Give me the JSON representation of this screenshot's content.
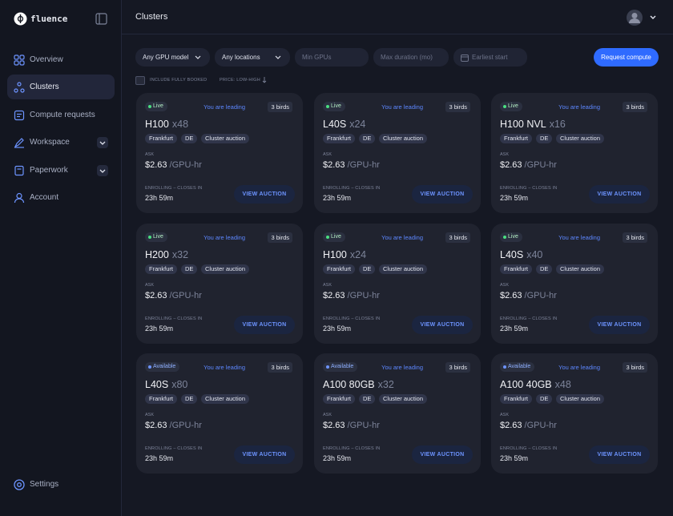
{
  "brand": "fluence",
  "nav": [
    {
      "label": "Overview"
    },
    {
      "label": "Clusters"
    },
    {
      "label": "Compute requests"
    },
    {
      "label": "Workspace"
    },
    {
      "label": "Paperwork"
    },
    {
      "label": "Account"
    }
  ],
  "settings": "Settings",
  "header": {
    "title": "Clusters"
  },
  "filters": {
    "gpu_model": "Any GPU model",
    "locations": "Any locations",
    "min_gpus": "Min GPUs",
    "max_duration": "Max duration (mo)",
    "earliest_start": "Earliest start",
    "request": "Request compute",
    "include_booked": "INCLUDE FULLY BOOKED",
    "sort": "PRICE: LOW-HIGH"
  },
  "cards": [
    {
      "status": "Live",
      "leading": "You are leading",
      "birds": "3 birds",
      "model": "H100",
      "count": "x48",
      "city": "Frankfurt",
      "country": "DE",
      "kind": "Cluster auction",
      "ask_label": "ASK",
      "price": "$2.63",
      "unit": "/GPU-hr",
      "closes_label": "ENROLLING – CLOSES IN",
      "time": "23h 59m",
      "button": "VIEW AUCTION"
    },
    {
      "status": "Live",
      "leading": "You are leading",
      "birds": "3 birds",
      "model": "L40S",
      "count": "x24",
      "city": "Frankfurt",
      "country": "DE",
      "kind": "Cluster auction",
      "ask_label": "ASK",
      "price": "$2.63",
      "unit": "/GPU-hr",
      "closes_label": "ENROLLING – CLOSES IN",
      "time": "23h 59m",
      "button": "VIEW AUCTION"
    },
    {
      "status": "Live",
      "leading": "You are leading",
      "birds": "3 birds",
      "model": "H100 NVL",
      "count": "x16",
      "city": "Frankfurt",
      "country": "DE",
      "kind": "Cluster auction",
      "ask_label": "ASK",
      "price": "$2.63",
      "unit": "/GPU-hr",
      "closes_label": "ENROLLING – CLOSES IN",
      "time": "23h 59m",
      "button": "VIEW AUCTION"
    },
    {
      "status": "Live",
      "leading": "You are leading",
      "birds": "3 birds",
      "model": "H200",
      "count": "x32",
      "city": "Frankfurt",
      "country": "DE",
      "kind": "Cluster auction",
      "ask_label": "ASK",
      "price": "$2.63",
      "unit": "/GPU-hr",
      "closes_label": "ENROLLING – CLOSES IN",
      "time": "23h 59m",
      "button": "VIEW AUCTION"
    },
    {
      "status": "Live",
      "leading": "You are leading",
      "birds": "3 birds",
      "model": "H100",
      "count": "x24",
      "city": "Frankfurt",
      "country": "DE",
      "kind": "Cluster auction",
      "ask_label": "ASK",
      "price": "$2.63",
      "unit": "/GPU-hr",
      "closes_label": "ENROLLING – CLOSES IN",
      "time": "23h 59m",
      "button": "VIEW AUCTION"
    },
    {
      "status": "Live",
      "leading": "You are leading",
      "birds": "3 birds",
      "model": "L40S",
      "count": "x40",
      "city": "Frankfurt",
      "country": "DE",
      "kind": "Cluster auction",
      "ask_label": "ASK",
      "price": "$2.63",
      "unit": "/GPU-hr",
      "closes_label": "ENROLLING – CLOSES IN",
      "time": "23h 59m",
      "button": "VIEW AUCTION"
    },
    {
      "status": "Available",
      "leading": "You are leading",
      "birds": "3 birds",
      "model": "L40S",
      "count": "x80",
      "city": "Frankfurt",
      "country": "DE",
      "kind": "Cluster auction",
      "ask_label": "ASK",
      "price": "$2.63",
      "unit": "/GPU-hr",
      "closes_label": "ENROLLING – CLOSES IN",
      "time": "23h 59m",
      "button": "VIEW AUCTION"
    },
    {
      "status": "Available",
      "leading": "You are leading",
      "birds": "3 birds",
      "model": "A100 80GB",
      "count": "x32",
      "city": "Frankfurt",
      "country": "DE",
      "kind": "Cluster auction",
      "ask_label": "ASK",
      "price": "$2.63",
      "unit": "/GPU-hr",
      "closes_label": "ENROLLING – CLOSES IN",
      "time": "23h 59m",
      "button": "VIEW AUCTION"
    },
    {
      "status": "Available",
      "leading": "You are leading",
      "birds": "3 birds",
      "model": "A100 40GB",
      "count": "x48",
      "city": "Frankfurt",
      "country": "DE",
      "kind": "Cluster auction",
      "ask_label": "ASK",
      "price": "$2.63",
      "unit": "/GPU-hr",
      "closes_label": "ENROLLING – CLOSES IN",
      "time": "23h 59m",
      "button": "VIEW AUCTION"
    }
  ]
}
